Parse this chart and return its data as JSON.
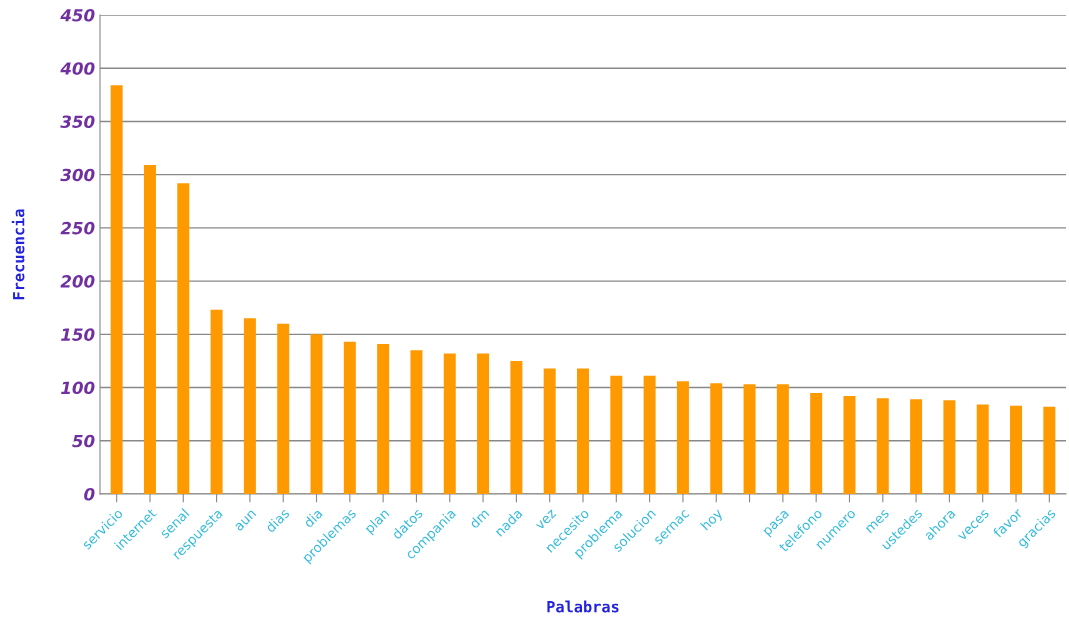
{
  "chart_data": {
    "type": "bar",
    "xlabel": "Palabras",
    "ylabel": "Frecuencia",
    "categories": [
      "servicio",
      "internet",
      "senal",
      "respuesta",
      "aun",
      "dias",
      "dia",
      "problemas",
      "plan",
      "datos",
      "compania",
      "dm",
      "nada",
      "vez",
      "necesito",
      "problema",
      "solucion",
      "sernac",
      "hoy",
      null,
      "pasa",
      "telefono",
      "numero",
      "mes",
      "ustedes",
      "ahora",
      "veces",
      "favor",
      "gracias"
    ],
    "values": [
      384,
      309,
      292,
      173,
      165,
      160,
      150,
      143,
      141,
      135,
      132,
      132,
      125,
      118,
      118,
      111,
      111,
      106,
      104,
      103,
      103,
      95,
      92,
      90,
      89,
      88,
      84,
      83,
      82
    ],
    "color": "#ff9900",
    "ylim": [
      0,
      450
    ],
    "yticks": [
      0,
      50,
      100,
      150,
      200,
      250,
      300,
      350,
      400,
      450
    ],
    "grid": "y",
    "legend": false
  }
}
